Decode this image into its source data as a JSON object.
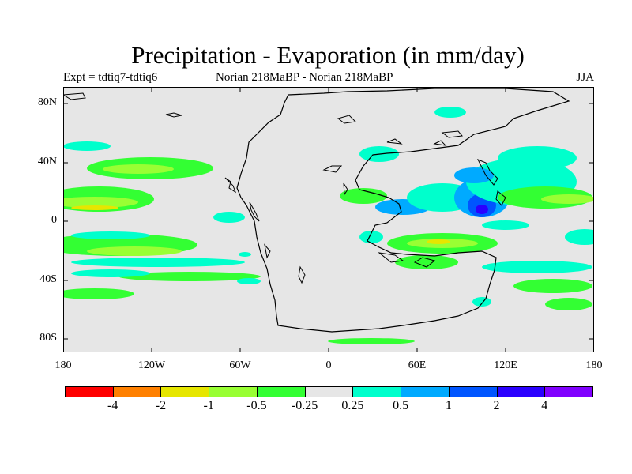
{
  "title": "Precipitation - Evaporation (in mm/day)",
  "subtitle_left": "Expt = tdtiq7-tdtiq6",
  "subtitle_center": "Norian   218MaBP - Norian   218MaBP",
  "subtitle_right": "JJA",
  "y_axis_labels": [
    "80N",
    "40N",
    "0",
    "40S",
    "80S"
  ],
  "x_axis_labels": [
    "180",
    "120W",
    "60W",
    "0",
    "60E",
    "120E",
    "180"
  ],
  "colorbar": {
    "colors": [
      "#ff0000",
      "#ff8000",
      "#e6e600",
      "#99ff33",
      "#33ff33",
      "#e6e6e6",
      "#00ffcc",
      "#00aaff",
      "#0055ff",
      "#2a00ff",
      "#8000ff"
    ],
    "labels": [
      "-4",
      "-2",
      "-1",
      "-0.5",
      "-0.25",
      "0.25",
      "0.5",
      "1",
      "2",
      "4"
    ]
  },
  "map": {
    "background_color": "#e6e6e6",
    "coastline_color": "#000000"
  }
}
